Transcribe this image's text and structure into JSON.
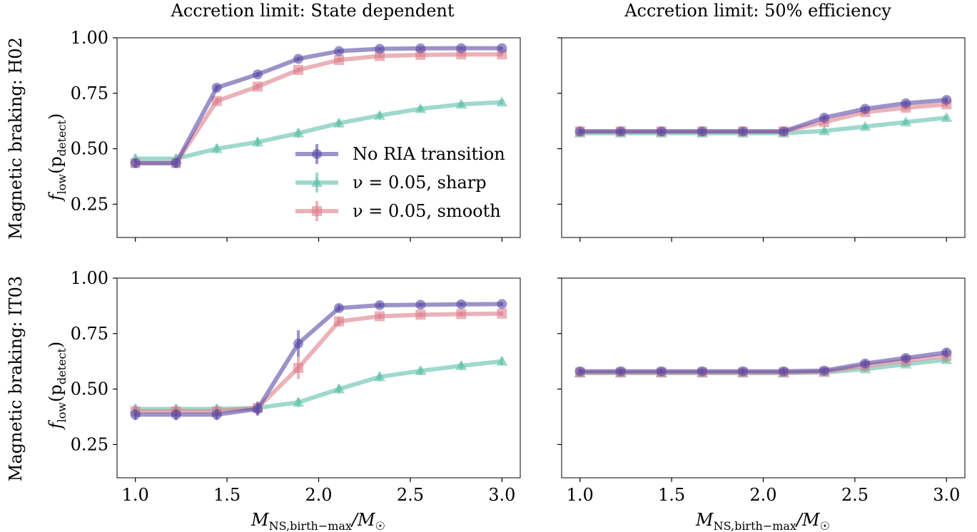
{
  "chart_data": {
    "type": "line",
    "column_titles": [
      "Accretion limit: State dependent",
      "Accretion limit: 50% efficiency"
    ],
    "row_labels": [
      "Magnetic braking: H02",
      "Magnetic braking: IT03"
    ],
    "ylabel": "f_low(p_detect)",
    "xlabel": "M_NS,birth−max/M_☉",
    "xlim": [
      0.9,
      3.1
    ],
    "ylim": [
      0.1,
      1.0
    ],
    "xticks": [
      1.0,
      1.5,
      2.0,
      2.5,
      3.0
    ],
    "xtick_labels": [
      "1.0",
      "1.5",
      "2.0",
      "2.5",
      "3.0"
    ],
    "yticks": [
      0.25,
      0.5,
      0.75,
      1.0
    ],
    "ytick_labels": [
      "0.25",
      "0.50",
      "0.75",
      "1.00"
    ],
    "x": [
      1.0,
      1.222,
      1.444,
      1.667,
      1.889,
      2.111,
      2.333,
      2.556,
      2.778,
      3.0
    ],
    "legend": {
      "placement": "center-right of top-left panel",
      "entries": [
        "No RIA transition",
        "ν = 0.05, sharp",
        "ν = 0.05, smooth"
      ]
    },
    "series_style": [
      {
        "color": "#5a4ba6",
        "marker": "circle"
      },
      {
        "color": "#5fbfa8",
        "marker": "triangle"
      },
      {
        "color": "#de7f8c",
        "marker": "square"
      }
    ],
    "panels": [
      {
        "row": 0,
        "col": 0,
        "series": [
          {
            "name": "No RIA transition",
            "values": [
              0.435,
              0.435,
              0.775,
              0.835,
              0.905,
              0.94,
              0.95,
              0.952,
              0.953,
              0.953
            ],
            "err": [
              0.02,
              0.02,
              0.012,
              0.01,
              0.008,
              0.006,
              0.005,
              0.005,
              0.005,
              0.005
            ]
          },
          {
            "name": "ν = 0.05, sharp",
            "values": [
              0.455,
              0.455,
              0.5,
              0.53,
              0.57,
              0.615,
              0.65,
              0.68,
              0.7,
              0.71
            ],
            "err": [
              0.02,
              0.02,
              0.02,
              0.02,
              0.02,
              0.018,
              0.016,
              0.014,
              0.013,
              0.012
            ]
          },
          {
            "name": "ν = 0.05, smooth",
            "values": [
              0.435,
              0.435,
              0.715,
              0.78,
              0.855,
              0.9,
              0.918,
              0.923,
              0.925,
              0.925
            ],
            "err": [
              0.02,
              0.02,
              0.015,
              0.012,
              0.01,
              0.008,
              0.007,
              0.006,
              0.006,
              0.006
            ]
          }
        ]
      },
      {
        "row": 0,
        "col": 1,
        "series": [
          {
            "name": "No RIA transition",
            "values": [
              0.578,
              0.578,
              0.578,
              0.578,
              0.578,
              0.578,
              0.64,
              0.68,
              0.705,
              0.72
            ],
            "err": [
              0.012,
              0.012,
              0.012,
              0.012,
              0.012,
              0.012,
              0.012,
              0.012,
              0.012,
              0.012
            ]
          },
          {
            "name": "ν = 0.05, sharp",
            "values": [
              0.57,
              0.57,
              0.57,
              0.57,
              0.57,
              0.57,
              0.58,
              0.6,
              0.62,
              0.64
            ],
            "err": [
              0.012,
              0.012,
              0.012,
              0.012,
              0.012,
              0.012,
              0.012,
              0.012,
              0.012,
              0.012
            ]
          },
          {
            "name": "ν = 0.05, smooth",
            "values": [
              0.578,
              0.578,
              0.578,
              0.578,
              0.578,
              0.578,
              0.62,
              0.665,
              0.685,
              0.7
            ],
            "err": [
              0.012,
              0.012,
              0.012,
              0.012,
              0.012,
              0.012,
              0.012,
              0.012,
              0.012,
              0.012
            ]
          }
        ]
      },
      {
        "row": 1,
        "col": 0,
        "series": [
          {
            "name": "No RIA transition",
            "values": [
              0.385,
              0.385,
              0.385,
              0.41,
              0.705,
              0.865,
              0.878,
              0.88,
              0.882,
              0.883
            ],
            "err": [
              0.025,
              0.025,
              0.025,
              0.03,
              0.06,
              0.015,
              0.01,
              0.008,
              0.008,
              0.008
            ]
          },
          {
            "name": "ν = 0.05, sharp",
            "values": [
              0.41,
              0.41,
              0.41,
              0.415,
              0.44,
              0.5,
              0.555,
              0.582,
              0.605,
              0.625
            ],
            "err": [
              0.02,
              0.02,
              0.02,
              0.02,
              0.02,
              0.02,
              0.02,
              0.018,
              0.018,
              0.018
            ]
          },
          {
            "name": "ν = 0.05, smooth",
            "values": [
              0.4,
              0.4,
              0.4,
              0.415,
              0.595,
              0.805,
              0.828,
              0.835,
              0.838,
              0.84
            ],
            "err": [
              0.025,
              0.025,
              0.025,
              0.03,
              0.05,
              0.02,
              0.012,
              0.01,
              0.01,
              0.01
            ]
          }
        ]
      },
      {
        "row": 1,
        "col": 1,
        "series": [
          {
            "name": "No RIA transition",
            "values": [
              0.58,
              0.58,
              0.58,
              0.58,
              0.58,
              0.58,
              0.583,
              0.615,
              0.64,
              0.665
            ],
            "err": [
              0.012,
              0.012,
              0.012,
              0.012,
              0.012,
              0.012,
              0.012,
              0.015,
              0.015,
              0.015
            ]
          },
          {
            "name": "ν = 0.05, sharp",
            "values": [
              0.572,
              0.572,
              0.572,
              0.572,
              0.572,
              0.572,
              0.575,
              0.59,
              0.612,
              0.632
            ],
            "err": [
              0.012,
              0.012,
              0.012,
              0.012,
              0.012,
              0.012,
              0.012,
              0.012,
              0.012,
              0.012
            ]
          },
          {
            "name": "ν = 0.05, smooth",
            "values": [
              0.575,
              0.575,
              0.575,
              0.575,
              0.575,
              0.575,
              0.578,
              0.605,
              0.628,
              0.65
            ],
            "err": [
              0.012,
              0.012,
              0.012,
              0.012,
              0.012,
              0.012,
              0.012,
              0.012,
              0.012,
              0.012
            ]
          }
        ]
      }
    ]
  }
}
